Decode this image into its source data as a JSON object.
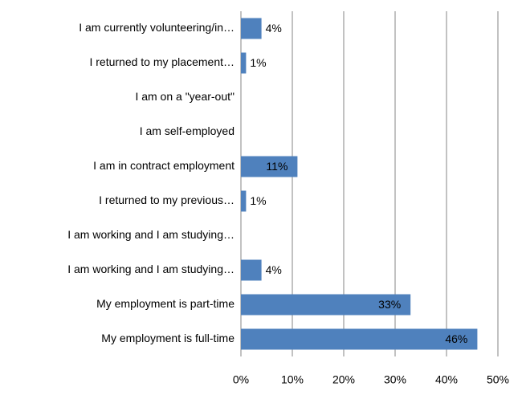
{
  "chart_data": {
    "type": "hbar",
    "categories": [
      "I am currently volunteering/in…",
      "I returned to my placement…",
      "I am on a \"year-out\"",
      "I am self-employed",
      "I am in contract employment",
      "I returned to my previous…",
      "I am working and I am studying…",
      "I am working and I am studying…",
      "My employment is part-time",
      "My employment is full-time"
    ],
    "values": [
      4,
      1,
      null,
      null,
      11,
      1,
      null,
      4,
      33,
      46
    ],
    "value_labels": [
      "4%",
      "1%",
      null,
      null,
      "11%",
      "1%",
      null,
      "4%",
      "33%",
      "46%"
    ],
    "color": "#4f81bd",
    "xlim": [
      0,
      50
    ],
    "xticks": [
      {
        "value": 0,
        "label": "0%"
      },
      {
        "value": 10,
        "label": "10%"
      },
      {
        "value": 20,
        "label": "20%"
      },
      {
        "value": 30,
        "label": "30%"
      },
      {
        "value": 40,
        "label": "40%"
      },
      {
        "value": 50,
        "label": "50%"
      }
    ],
    "grid": true
  }
}
